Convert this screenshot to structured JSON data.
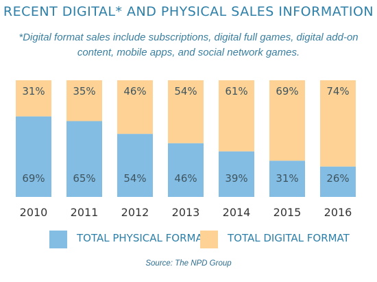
{
  "title": "RECENT DIGITAL* AND PHYSICAL SALES INFORMATION",
  "subtitle": "*Digital format sales include subscriptions, digital full games, digital add-on content, mobile apps, and social network games.",
  "source": "Source: The NPD Group",
  "colors": {
    "physical": "#84bde3",
    "digital": "#fdd294",
    "text_accent": "#2c7fa8",
    "label": "#3e5560"
  },
  "chart_data": {
    "type": "bar",
    "stacked": true,
    "categories": [
      "2010",
      "2011",
      "2012",
      "2013",
      "2014",
      "2015",
      "2016"
    ],
    "series": [
      {
        "name": "TOTAL PHYSICAL FORMAT",
        "values": [
          69,
          65,
          54,
          46,
          39,
          31,
          26
        ]
      },
      {
        "name": "TOTAL DIGITAL FORMAT",
        "values": [
          31,
          35,
          46,
          54,
          61,
          69,
          74
        ]
      }
    ],
    "value_suffix": "%",
    "ylim": [
      0,
      100
    ],
    "grid": false,
    "legend_position": "bottom"
  },
  "legend": [
    {
      "label": "TOTAL PHYSICAL FORMAT",
      "color": "#84bde3"
    },
    {
      "label": "TOTAL DIGITAL FORMAT",
      "color": "#fdd294"
    }
  ]
}
